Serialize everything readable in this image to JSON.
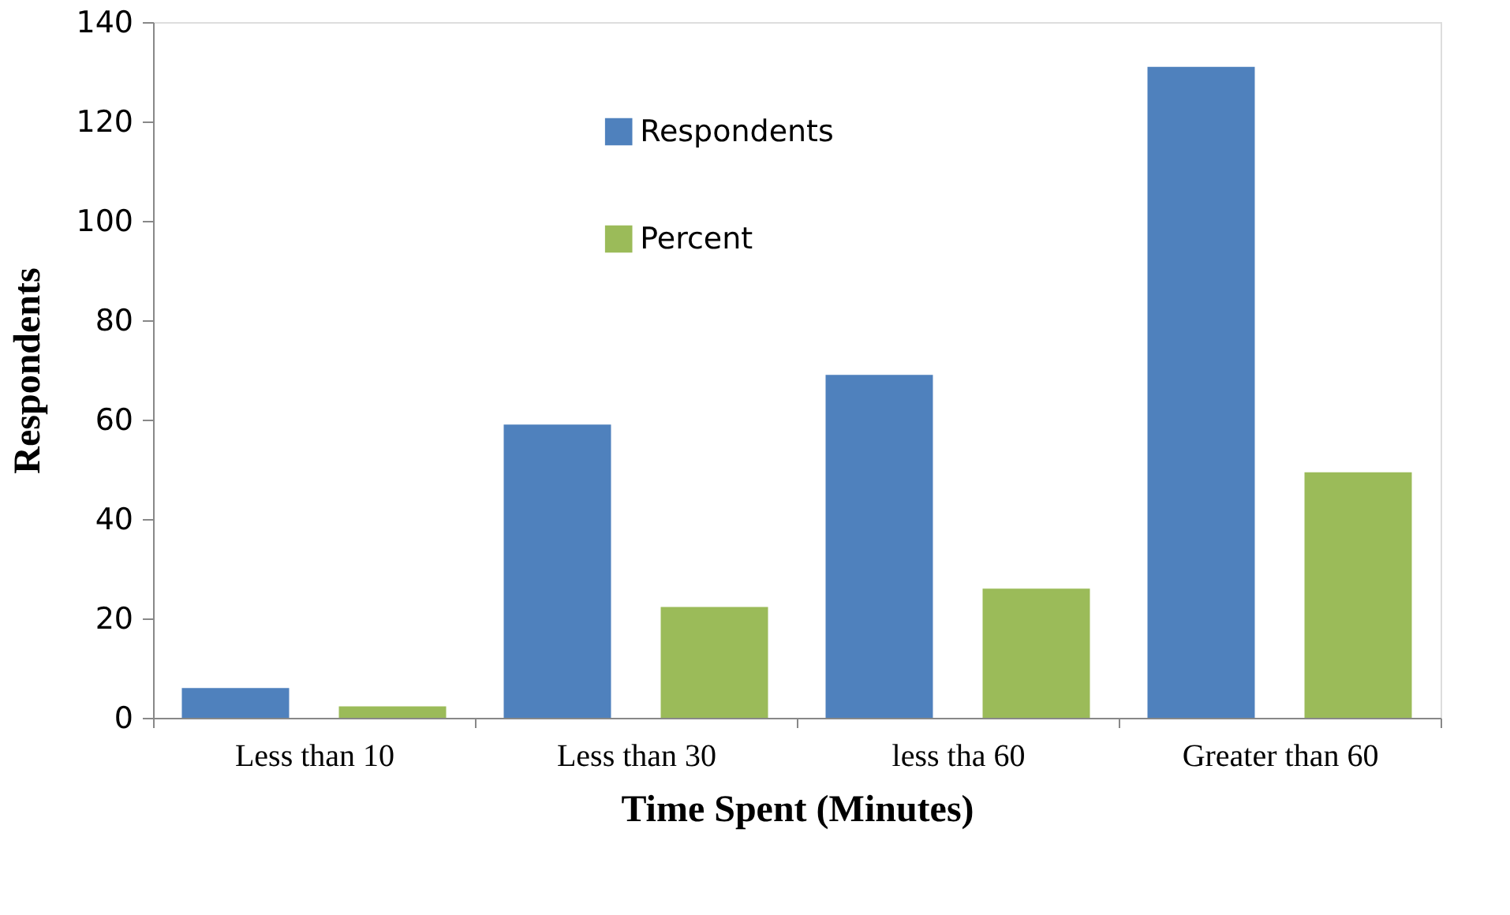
{
  "chart_data": {
    "type": "bar",
    "xlabel": "Time Spent (Minutes)",
    "ylabel": "Respondents",
    "categories": [
      "Less than 10",
      "Less than 30",
      "less tha 60",
      "Greater than 60"
    ],
    "series": [
      {
        "name": "Respondents",
        "color": "#4f81bd",
        "values": [
          6,
          59,
          69,
          131
        ]
      },
      {
        "name": "Percent",
        "color": "#9bbb59",
        "values": [
          2.3,
          22.3,
          26.0,
          49.4
        ]
      }
    ],
    "ylim": [
      0,
      140
    ],
    "yticks": [
      0,
      20,
      40,
      60,
      80,
      100,
      120,
      140
    ],
    "grid": false,
    "legend": "top"
  }
}
